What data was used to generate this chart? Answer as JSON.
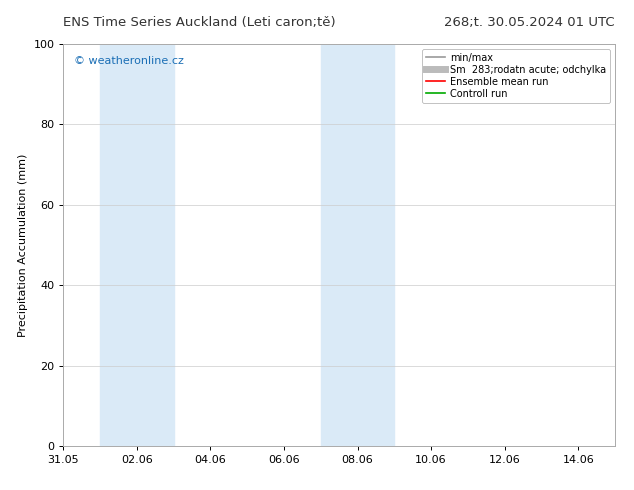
{
  "title_left": "ENS Time Series Auckland (Leti caron;tě)",
  "title_right": "268;t. 30.05.2024 01 UTC",
  "ylabel": "Precipitation Accumulation (mm)",
  "ylim": [
    0,
    100
  ],
  "yticks": [
    0,
    20,
    40,
    60,
    80,
    100
  ],
  "xtick_labels": [
    "31.05",
    "02.06",
    "04.06",
    "06.06",
    "08.06",
    "10.06",
    "12.06",
    "14.06"
  ],
  "xtick_positions": [
    0,
    2,
    4,
    6,
    8,
    10,
    12,
    14
  ],
  "x_min": 0,
  "x_max": 15,
  "shade_bands": [
    {
      "x_start": 1.0,
      "x_end": 3.0,
      "color": "#daeaf7"
    },
    {
      "x_start": 7.0,
      "x_end": 9.0,
      "color": "#daeaf7"
    }
  ],
  "watermark": "© weatheronline.cz",
  "watermark_color": "#1a6eb5",
  "legend_items": [
    {
      "label": "min/max",
      "color": "#999999",
      "lw": 1.2
    },
    {
      "label": "Sm  283;rodatn acute; odchylka",
      "color": "#bbbbbb",
      "lw": 5
    },
    {
      "label": "Ensemble mean run",
      "color": "#ff0000",
      "lw": 1.2
    },
    {
      "label": "Controll run",
      "color": "#00aa00",
      "lw": 1.2
    }
  ],
  "bg_color": "#ffffff",
  "plot_bg_color": "#ffffff",
  "grid_color": "#cccccc",
  "title_fontsize": 9.5,
  "ylabel_fontsize": 8,
  "tick_fontsize": 8,
  "watermark_fontsize": 8,
  "legend_fontsize": 7
}
